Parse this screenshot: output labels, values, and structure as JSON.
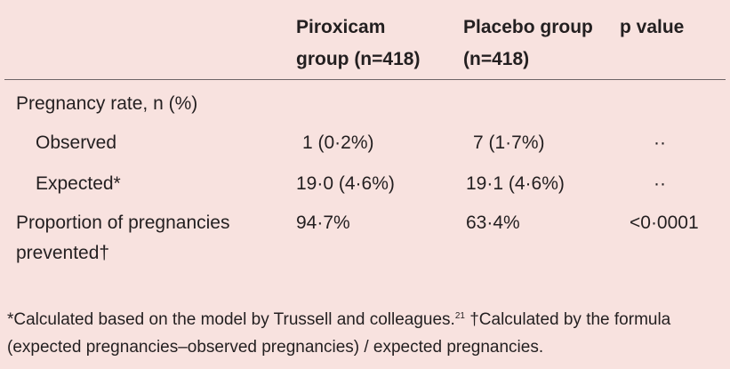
{
  "header": {
    "col1": [
      "Piroxicam",
      "group (n=418)"
    ],
    "col2": [
      "Placebo group",
      "(n=418)"
    ],
    "col3": "p value"
  },
  "rows": {
    "pregnancy_rate": {
      "label": "Pregnancy rate, n (%)"
    },
    "observed": {
      "label": "Observed",
      "piroxicam": "1 (0·2%)",
      "placebo": "7 (1·7%)",
      "p": "··"
    },
    "expected": {
      "label": "Expected*",
      "piroxicam": "19·0 (4·6%)",
      "placebo": "19·1 (4·6%)",
      "p": "··"
    },
    "prevented": {
      "label": [
        "Proportion of pregnancies",
        "prevented†"
      ],
      "piroxicam": "94·7%",
      "placebo": "63·4%",
      "p": "<0·0001"
    }
  },
  "footnote": {
    "part1": "*Calculated based on the model by Trussell and colleagues.",
    "ref": "21",
    "part2": " †Calculated by the formula (expected pregnancies–observed pregnancies) / expected pregnancies."
  }
}
